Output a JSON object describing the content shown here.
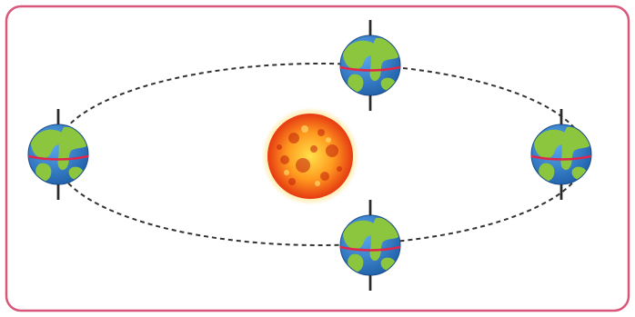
{
  "frame": {
    "border_color": "#d9577a",
    "background": "#ffffff"
  },
  "orbit": {
    "stroke_color": "#333333",
    "style": "dashed"
  },
  "sun": {
    "icon": "sun-icon",
    "colors": {
      "core": "#ffe14a",
      "mid": "#ff9a1f",
      "edge": "#e63a12",
      "spots": "#c2210c"
    }
  },
  "earths": [
    {
      "icon": "globe-icon",
      "position_label": "top"
    },
    {
      "icon": "globe-icon",
      "position_label": "right"
    },
    {
      "icon": "globe-icon",
      "position_label": "bottom"
    },
    {
      "icon": "globe-icon",
      "position_label": "left"
    }
  ],
  "earth_colors": {
    "ocean": "#2f7fd0",
    "land": "#8cc63f",
    "axis": "#2a2a2a",
    "equator": "#e0264a"
  }
}
